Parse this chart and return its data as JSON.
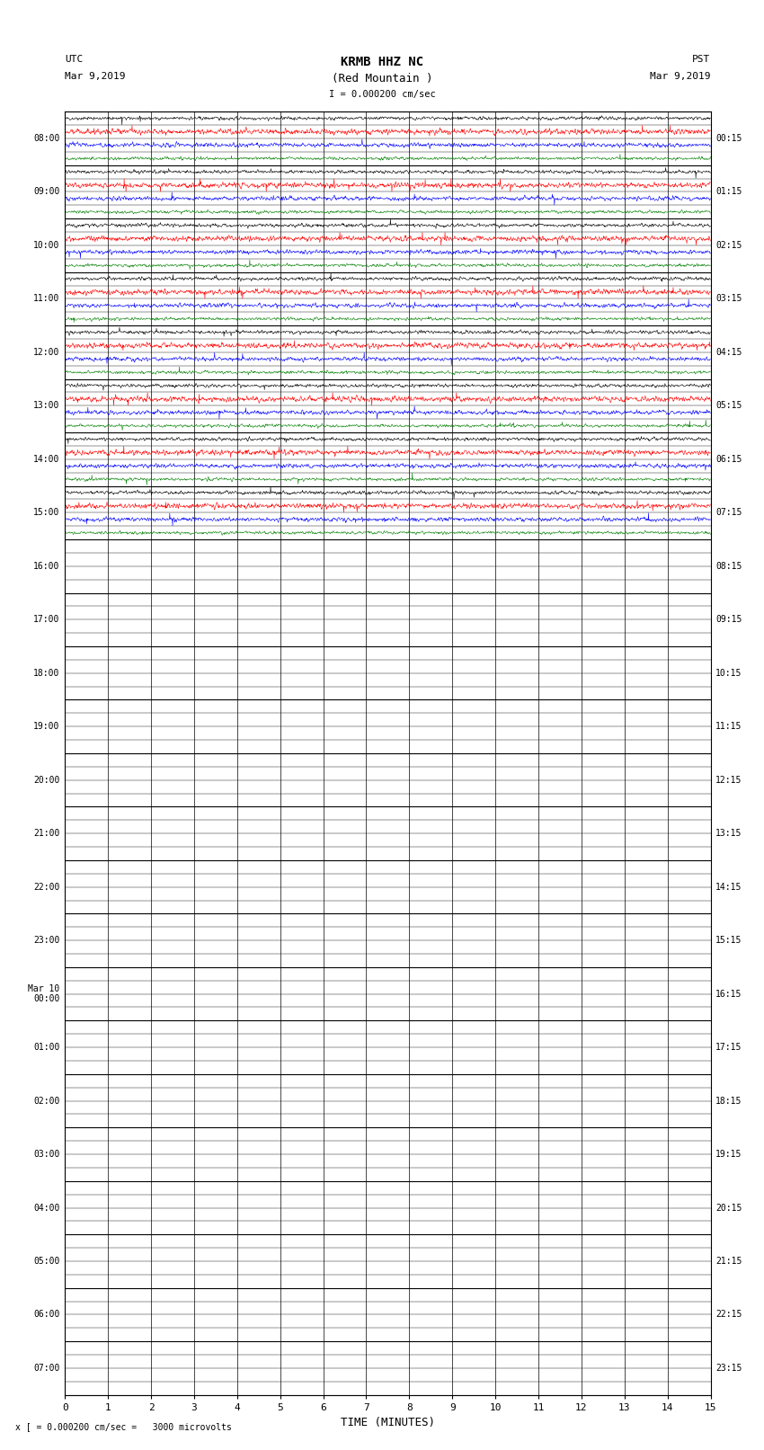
{
  "title_line1": "KRMB HHZ NC",
  "title_line2": "(Red Mountain )",
  "scale_text": "I = 0.000200 cm/sec",
  "utc_label": "UTC",
  "utc_date": "Mar 9,2019",
  "pst_label": "PST",
  "pst_date": "Mar 9,2019",
  "bottom_label": "x [ = 0.000200 cm/sec =   3000 microvolts",
  "xlabel": "TIME (MINUTES)",
  "left_times": [
    "08:00",
    "09:00",
    "10:00",
    "11:00",
    "12:00",
    "13:00",
    "14:00",
    "15:00",
    "16:00",
    "17:00",
    "18:00",
    "19:00",
    "20:00",
    "21:00",
    "22:00",
    "23:00",
    "Mar 10\n00:00",
    "01:00",
    "02:00",
    "03:00",
    "04:00",
    "05:00",
    "06:00",
    "07:00"
  ],
  "right_times": [
    "00:15",
    "01:15",
    "02:15",
    "03:15",
    "04:15",
    "05:15",
    "06:15",
    "07:15",
    "08:15",
    "09:15",
    "10:15",
    "11:15",
    "12:15",
    "13:15",
    "14:15",
    "15:15",
    "16:15",
    "17:15",
    "18:15",
    "19:15",
    "20:15",
    "21:15",
    "22:15",
    "23:15"
  ],
  "n_rows": 24,
  "n_active_rows": 8,
  "traces_per_row": 4,
  "trace_colors": [
    "black",
    "red",
    "blue",
    "green"
  ],
  "bg_color": "white",
  "plot_bg_color": "white",
  "grid_color": "black",
  "x_min": 0,
  "x_max": 15,
  "x_ticks": [
    0,
    1,
    2,
    3,
    4,
    5,
    6,
    7,
    8,
    9,
    10,
    11,
    12,
    13,
    14,
    15
  ],
  "noise_amplitude": [
    0.09,
    0.14,
    0.11,
    0.08
  ],
  "seed": 42,
  "lw": 0.4,
  "sub_rows_per_hour": 4
}
